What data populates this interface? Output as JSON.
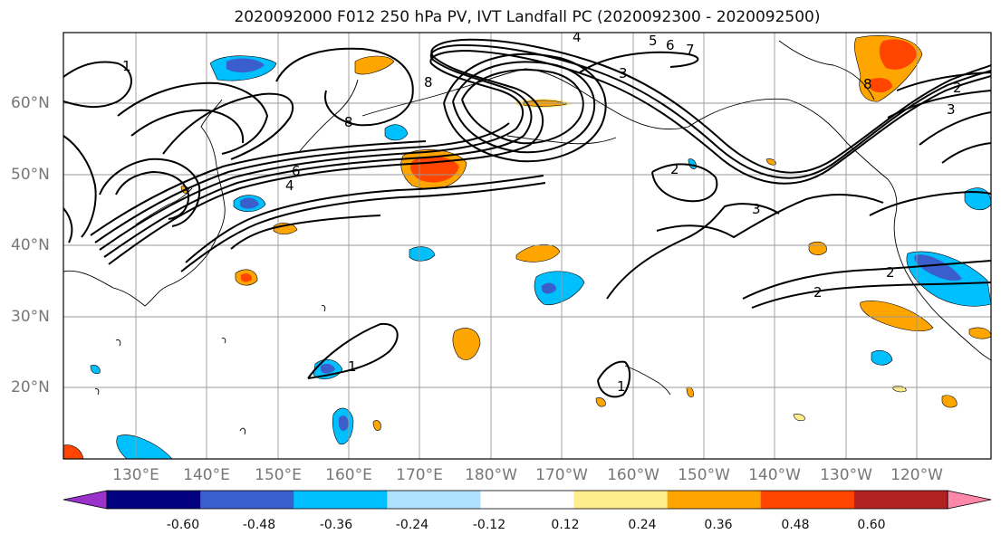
{
  "title": "2020092000 F012 250 hPa PV, IVT Landfall PC (2020092300 - 2020092500)",
  "lat_labels": [
    "60°N",
    "50°N",
    "40°N",
    "30°N",
    "20°N"
  ],
  "lon_labels": [
    "130°E",
    "140°E",
    "150°E",
    "160°E",
    "170°E",
    "180°W",
    "170°W",
    "160°W",
    "150°W",
    "140°W",
    "130°W",
    "120°W"
  ],
  "colorbar": {
    "tick_labels": [
      "-0.60",
      "-0.48",
      "-0.36",
      "-0.24",
      "-0.12",
      "0.12",
      "0.24",
      "0.36",
      "0.48",
      "0.60"
    ],
    "colors": [
      "#9933cc",
      "#000080",
      "#3a5fcd",
      "#00bfff",
      "#b0e2ff",
      "#ffffff",
      "#ffec8b",
      "#ffa500",
      "#ff4500",
      "#b22222",
      "#ff88aa"
    ]
  },
  "contour_labels": [
    "1",
    "4",
    "5",
    "6",
    "7",
    "8",
    "3",
    "8",
    "6",
    "4",
    "2",
    "8",
    "2",
    "3",
    "3",
    "2",
    "2",
    "1",
    "1"
  ]
}
